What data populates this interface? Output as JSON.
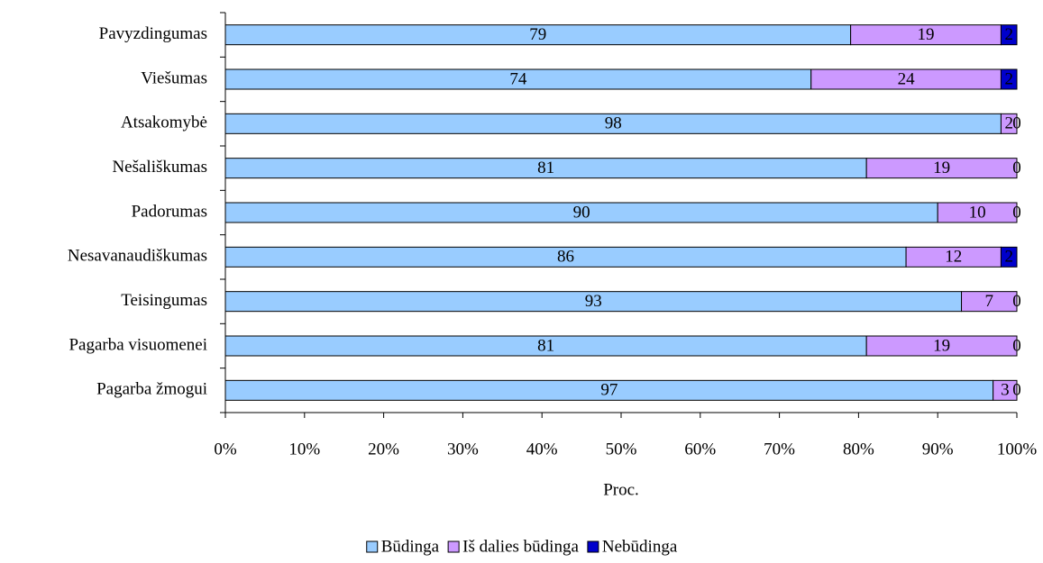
{
  "chart_data": {
    "type": "stacked_barh",
    "categories": [
      "Pavyzdingumas",
      "Viešumas",
      "Atsakomybė",
      "Nešališkumas",
      "Padorumas",
      "Nesavanaudiškumas",
      "Teisingumas",
      "Pagarba visuomenei",
      "Pagarba žmogui"
    ],
    "series": [
      {
        "name": "Būdinga",
        "color": "#99ccff",
        "values": [
          79,
          74,
          98,
          81,
          90,
          86,
          93,
          81,
          97
        ]
      },
      {
        "name": "Iš dalies būdinga",
        "color": "#cc99ff",
        "values": [
          19,
          24,
          2,
          19,
          10,
          12,
          7,
          19,
          3
        ]
      },
      {
        "name": "Nebūdinga",
        "color": "#0000cc",
        "values": [
          2,
          2,
          0,
          0,
          0,
          2,
          0,
          0,
          0
        ]
      }
    ],
    "xlabel": "Proc.",
    "xlim": [
      0,
      100
    ],
    "xticks": [
      {
        "value": 0,
        "label": "0%"
      },
      {
        "value": 10,
        "label": "10%"
      },
      {
        "value": 20,
        "label": "20%"
      },
      {
        "value": 30,
        "label": "30%"
      },
      {
        "value": 40,
        "label": "40%"
      },
      {
        "value": 50,
        "label": "50%"
      },
      {
        "value": 60,
        "label": "60%"
      },
      {
        "value": 70,
        "label": "70%"
      },
      {
        "value": 80,
        "label": "80%"
      },
      {
        "value": 90,
        "label": "90%"
      },
      {
        "value": 100,
        "label": "100%"
      }
    ],
    "legend": "bottom"
  }
}
